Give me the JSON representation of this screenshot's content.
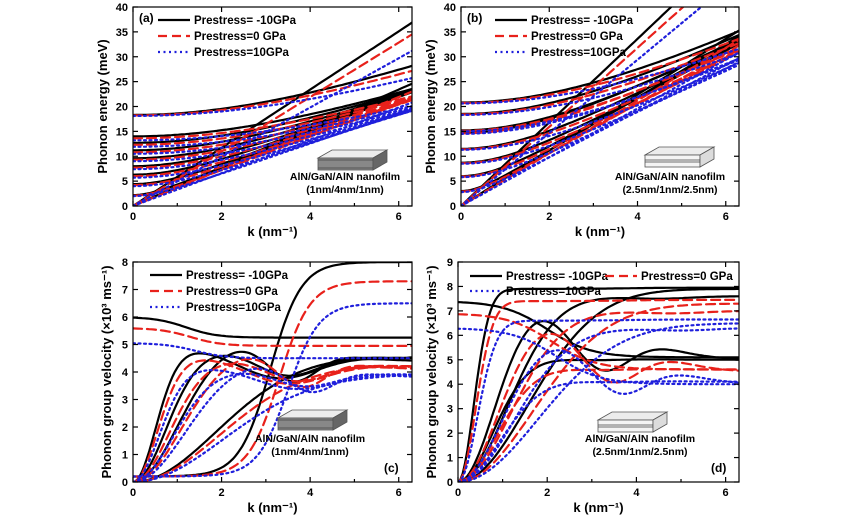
{
  "styles": {
    "neg10": {
      "color": "#000000",
      "dash": "",
      "width": 2.2
    },
    "zero": {
      "color": "#e8211b",
      "dash": "9,5",
      "width": 2.2
    },
    "pos10": {
      "color": "#1f1fdc",
      "dash": "2,3.5",
      "width": 2.2
    }
  },
  "chart_data": [
    {
      "type": "line",
      "panel": "(a)",
      "ylabel": "Phonon energy (meV)",
      "xlabel": "k (nm⁻¹)",
      "xlim": [
        0,
        6.3
      ],
      "ylim": [
        0,
        40
      ],
      "xticks": [
        0,
        2,
        4,
        6
      ],
      "yticks": [
        0,
        5,
        10,
        15,
        20,
        25,
        30,
        35,
        40
      ],
      "legend_position": "top-right",
      "legend": [
        "Prestress= -10GPa",
        "Prestress=0 GPa",
        "Prestress=10GPa"
      ],
      "annotation": [
        "AlN/GaN/AlN nanofilm",
        "(1nm/4nm/1nm)"
      ],
      "layer_style": "thick-core",
      "model": "dispersion",
      "series": [
        {
          "name": "Prestress= -10GPa",
          "style": "neg10",
          "cutoffs": [
            0,
            0,
            2.2,
            4.4,
            6.3,
            8.0,
            9.6,
            11.2,
            12.7,
            14.0,
            18.3
          ],
          "slopes": [
            3.9,
            3.9,
            3.7,
            3.6,
            3.5,
            3.4,
            3.3,
            3.2,
            3.1,
            3.0,
            3.4
          ]
        },
        {
          "name": "Prestress=0 GPa",
          "style": "zero",
          "cutoffs": [
            0,
            0,
            2.1,
            4.2,
            6.0,
            7.7,
            9.3,
            10.8,
            12.3,
            13.6,
            18.2
          ],
          "slopes": [
            3.65,
            3.65,
            3.45,
            3.35,
            3.25,
            3.15,
            3.05,
            2.95,
            2.85,
            2.75,
            3.2
          ]
        },
        {
          "name": "Prestress=10GPa",
          "style": "pos10",
          "cutoffs": [
            0,
            0,
            2.0,
            4.0,
            5.7,
            7.4,
            9.0,
            10.5,
            11.9,
            13.2,
            18.1
          ],
          "slopes": [
            3.3,
            3.3,
            3.1,
            3.0,
            2.9,
            2.8,
            2.7,
            2.6,
            2.5,
            2.4,
            2.9
          ]
        }
      ]
    },
    {
      "type": "line",
      "panel": "(b)",
      "ylabel": "Phonon energy (meV)",
      "xlabel": "k (nm⁻¹)",
      "xlim": [
        0,
        6.3
      ],
      "ylim": [
        0,
        40
      ],
      "xticks": [
        0,
        2,
        4,
        6
      ],
      "yticks": [
        0,
        5,
        10,
        15,
        20,
        25,
        30,
        35,
        40
      ],
      "legend_position": "top-right",
      "legend": [
        "Prestress= -10GPa",
        "Prestress=0 GPa",
        "Prestress=10GPa"
      ],
      "annotation": [
        "AlN/GaN/AlN nanofilm",
        "(2.5nm/1nm/2.5nm)"
      ],
      "layer_style": "thin-core",
      "model": "dispersion",
      "series": [
        {
          "name": "Prestress= -10GPa",
          "style": "neg10",
          "cutoffs": [
            0,
            0,
            3.0,
            6.0,
            8.7,
            11.5,
            14.7,
            15.2,
            18.5,
            20.8
          ],
          "slopes": [
            5.6,
            5.6,
            5.4,
            5.2,
            5.0,
            4.9,
            4.8,
            4.7,
            4.6,
            4.5
          ]
        },
        {
          "name": "Prestress=0 GPa",
          "style": "zero",
          "cutoffs": [
            0,
            0,
            2.9,
            5.9,
            8.6,
            11.4,
            14.6,
            15.1,
            18.4,
            20.7
          ],
          "slopes": [
            5.3,
            5.3,
            5.1,
            4.9,
            4.7,
            4.6,
            4.5,
            4.4,
            4.3,
            4.2
          ]
        },
        {
          "name": "Prestress=10GPa",
          "style": "pos10",
          "cutoffs": [
            0,
            0,
            2.8,
            5.8,
            8.5,
            11.3,
            14.5,
            15.0,
            18.3,
            20.6
          ],
          "slopes": [
            4.9,
            4.9,
            4.7,
            4.5,
            4.3,
            4.2,
            4.1,
            4.0,
            3.9,
            3.8
          ]
        }
      ]
    },
    {
      "type": "line",
      "panel": "(c)",
      "ylabel": "Phonon group velocity (×10³ ms⁻¹)",
      "xlabel": "k (nm⁻¹)",
      "xlim": [
        0,
        6.3
      ],
      "ylim": [
        0,
        8
      ],
      "xticks": [
        0,
        2,
        4,
        6
      ],
      "yticks": [
        0,
        1,
        2,
        3,
        4,
        5,
        6,
        7,
        8
      ],
      "legend_position": "top-left",
      "legend": [
        "Prestress= -10GPa",
        "Prestress=0 GPa",
        "Prestress=10GPa"
      ],
      "annotation": [
        "AlN/GaN/AlN nanofilm",
        "(1nm/4nm/1nm)"
      ],
      "layer_style": "thick-core",
      "model": "velocity",
      "series": [
        {
          "name": "Prestress= -10GPa",
          "style": "neg10",
          "curves": [
            {
              "kind": "sigmoid",
              "a": 6.0,
              "b": 5.25,
              "k0": 1.2,
              "w": 0.35
            },
            {
              "kind": "sigmoid",
              "a": 0.2,
              "b": 8.0,
              "k0": 3.1,
              "w": 0.35
            },
            {
              "kind": "rise",
              "peak": 4.9,
              "kp": 1.3,
              "floor": 3.8,
              "kd": 3.3,
              "sh": 1.3,
              "end": 4.5
            },
            {
              "kind": "rise",
              "peak": 4.8,
              "kp": 1.9,
              "floor": 3.9,
              "kd": 3.5,
              "sh": 1.0,
              "end": 4.5
            },
            {
              "kind": "rise",
              "peak": 5.2,
              "kp": 2.6,
              "floor": 3.8,
              "kd": 3.6,
              "sh": 0.8,
              "end": 4.4
            },
            {
              "kind": "rise",
              "peak": 4.6,
              "kp": 4.8,
              "floor": 4.5,
              "kd": 5.8,
              "sh": 0.6,
              "end": 4.6
            }
          ]
        },
        {
          "name": "Prestress=0 GPa",
          "style": "zero",
          "curves": [
            {
              "kind": "sigmoid",
              "a": 5.6,
              "b": 4.95,
              "k0": 1.3,
              "w": 0.35
            },
            {
              "kind": "sigmoid",
              "a": 0.2,
              "b": 7.3,
              "k0": 3.3,
              "w": 0.35
            },
            {
              "kind": "rise",
              "peak": 4.6,
              "kp": 1.4,
              "floor": 3.6,
              "kd": 3.5,
              "sh": 1.3,
              "end": 4.2
            },
            {
              "kind": "rise",
              "peak": 4.5,
              "kp": 2.1,
              "floor": 3.7,
              "kd": 3.7,
              "sh": 1.0,
              "end": 4.2
            },
            {
              "kind": "rise",
              "peak": 4.9,
              "kp": 2.8,
              "floor": 3.6,
              "kd": 3.8,
              "sh": 0.8,
              "end": 4.1
            },
            {
              "kind": "rise",
              "peak": 4.3,
              "kp": 5.0,
              "floor": 4.2,
              "kd": 6.0,
              "sh": 0.6,
              "end": 4.3
            }
          ]
        },
        {
          "name": "Prestress=10GPa",
          "style": "pos10",
          "curves": [
            {
              "kind": "sigmoid",
              "a": 5.05,
              "b": 4.5,
              "k0": 1.4,
              "w": 0.35
            },
            {
              "kind": "sigmoid",
              "a": 0.2,
              "b": 6.5,
              "k0": 3.5,
              "w": 0.35
            },
            {
              "kind": "rise",
              "peak": 4.2,
              "kp": 1.5,
              "floor": 3.4,
              "kd": 3.7,
              "sh": 1.3,
              "end": 3.9
            },
            {
              "kind": "rise",
              "peak": 4.1,
              "kp": 2.3,
              "floor": 3.5,
              "kd": 3.9,
              "sh": 1.0,
              "end": 3.9
            },
            {
              "kind": "rise",
              "peak": 4.5,
              "kp": 3.0,
              "floor": 3.4,
              "kd": 4.0,
              "sh": 0.8,
              "end": 3.8
            },
            {
              "kind": "rise",
              "peak": 3.9,
              "kp": 5.2,
              "floor": 3.9,
              "kd": 6.2,
              "sh": 0.6,
              "end": 4.0
            }
          ]
        }
      ]
    },
    {
      "type": "line",
      "panel": "(d)",
      "ylabel": "Phonon group velocity (×10³ ms⁻¹)",
      "xlabel": "k (nm⁻¹)",
      "xlim": [
        0,
        6.3
      ],
      "ylim": [
        0,
        9
      ],
      "xticks": [
        0,
        2,
        4,
        6
      ],
      "yticks": [
        0,
        1,
        2,
        3,
        4,
        5,
        6,
        7,
        8,
        9
      ],
      "legend_position": "top",
      "legend": [
        "Prestress= -10GPa",
        "Prestress=0 GPa",
        "Prestress=10GPa"
      ],
      "annotation": [
        "AlN/GaN/AlN nanofilm",
        "(2.5nm/1nm/2.5nm)"
      ],
      "layer_style": "thin-core",
      "model": "velocity",
      "series": [
        {
          "name": "Prestress= -10GPa",
          "style": "neg10",
          "curves": [
            {
              "kind": "sigmoid",
              "a": 7.4,
              "b": 5.1,
              "k0": 2.0,
              "w": 0.5
            },
            {
              "kind": "rise",
              "peak": 7.9,
              "kp": 0.9,
              "floor": 7.9,
              "kd": 3.0,
              "sh": 0.8,
              "end": 7.95
            },
            {
              "kind": "rise",
              "peak": 7.6,
              "kp": 2.1,
              "floor": 4.9,
              "kd": 3.2,
              "sh": 1.0,
              "end": 5.0
            },
            {
              "kind": "rise",
              "peak": 7.9,
              "kp": 4.0,
              "floor": 7.9,
              "kd": 6.0,
              "sh": 1.5,
              "end": 7.9
            },
            {
              "kind": "rise",
              "peak": 5.1,
              "kp": 2.0,
              "floor": 5.0,
              "kd": 3.0,
              "sh": 1.0,
              "end": 5.0
            },
            {
              "kind": "rise",
              "peak": 7.6,
              "kp": 2.8,
              "floor": 7.5,
              "kd": 4.5,
              "sh": 1.0,
              "end": 7.6
            }
          ]
        },
        {
          "name": "Prestress=0 GPa",
          "style": "zero",
          "curves": [
            {
              "kind": "sigmoid",
              "a": 6.9,
              "b": 4.6,
              "k0": 2.1,
              "w": 0.5
            },
            {
              "kind": "rise",
              "peak": 7.4,
              "kp": 1.0,
              "floor": 7.4,
              "kd": 3.0,
              "sh": 0.8,
              "end": 7.45
            },
            {
              "kind": "rise",
              "peak": 7.0,
              "kp": 2.3,
              "floor": 4.4,
              "kd": 3.4,
              "sh": 1.0,
              "end": 4.5
            },
            {
              "kind": "rise",
              "peak": 7.3,
              "kp": 4.3,
              "floor": 7.3,
              "kd": 6.0,
              "sh": 1.5,
              "end": 7.3
            },
            {
              "kind": "rise",
              "peak": 4.7,
              "kp": 2.2,
              "floor": 4.6,
              "kd": 3.2,
              "sh": 1.0,
              "end": 4.6
            },
            {
              "kind": "rise",
              "peak": 7.0,
              "kp": 3.0,
              "floor": 6.9,
              "kd": 4.8,
              "sh": 1.0,
              "end": 7.0
            }
          ]
        },
        {
          "name": "Prestress=10GPa",
          "style": "pos10",
          "curves": [
            {
              "kind": "sigmoid",
              "a": 6.3,
              "b": 4.0,
              "k0": 2.2,
              "w": 0.5
            },
            {
              "kind": "rise",
              "peak": 6.6,
              "kp": 1.1,
              "floor": 6.6,
              "kd": 3.0,
              "sh": 0.8,
              "end": 6.65
            },
            {
              "kind": "rise",
              "peak": 6.2,
              "kp": 2.5,
              "floor": 3.9,
              "kd": 3.6,
              "sh": 1.0,
              "end": 4.0
            },
            {
              "kind": "rise",
              "peak": 6.5,
              "kp": 4.6,
              "floor": 6.5,
              "kd": 6.0,
              "sh": 1.5,
              "end": 6.5
            },
            {
              "kind": "rise",
              "peak": 4.2,
              "kp": 2.4,
              "floor": 4.1,
              "kd": 3.4,
              "sh": 1.0,
              "end": 4.1
            },
            {
              "kind": "rise",
              "peak": 6.3,
              "kp": 3.2,
              "floor": 6.2,
              "kd": 5.0,
              "sh": 1.0,
              "end": 6.3
            }
          ]
        }
      ]
    }
  ]
}
